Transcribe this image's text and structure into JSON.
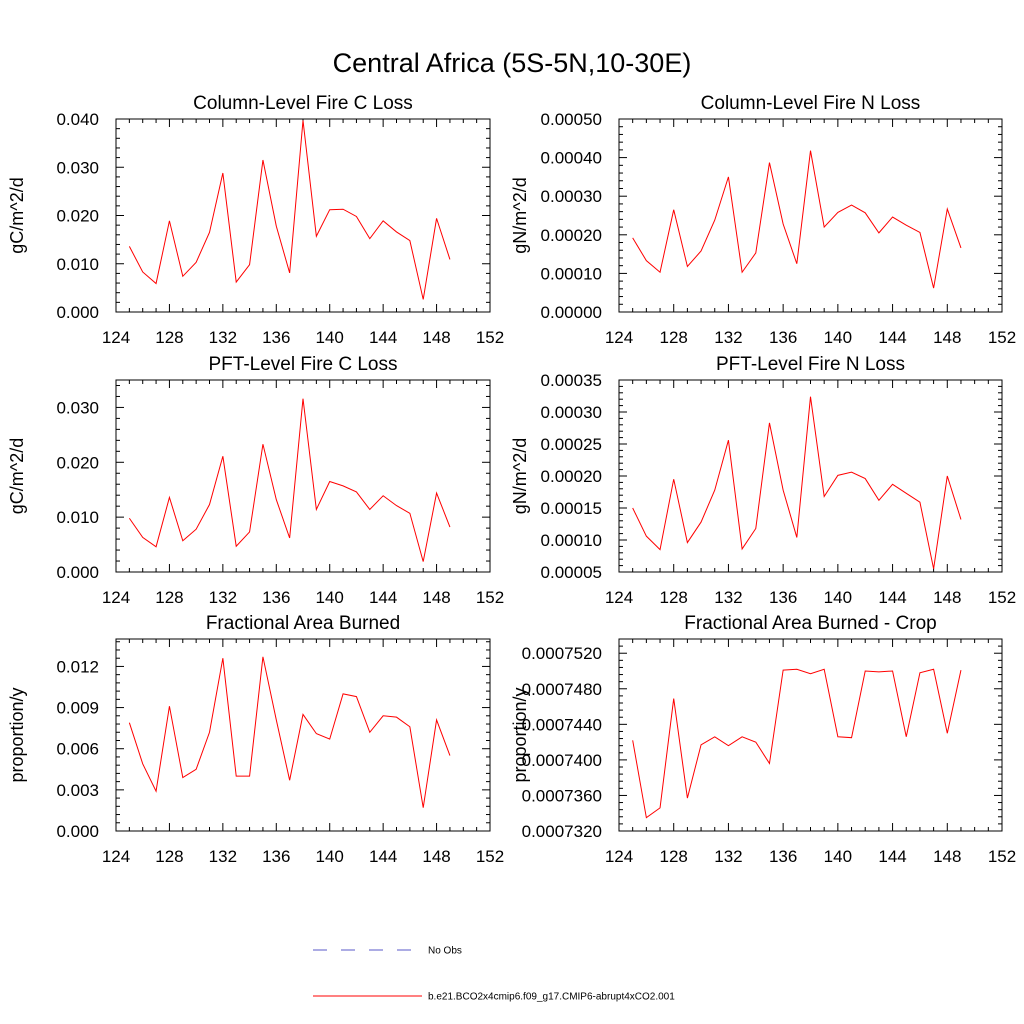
{
  "figure": {
    "title": "Central Africa (5S-5N,10-30E)"
  },
  "legend": {
    "entries": [
      {
        "label": "No Obs",
        "color": "#5a5ac8",
        "style": "dashed"
      },
      {
        "label": "b.e21.BCO2x4cmip6.f09_g17.CMIP6-abrupt4xCO2.001",
        "color": "#ff0000",
        "style": "solid"
      }
    ]
  },
  "chart_data": [
    {
      "type": "line",
      "title": "Column-Level Fire C Loss",
      "xlabel": "",
      "ylabel": "gC/m^2/d",
      "xlim": [
        124,
        152
      ],
      "ylim": [
        0,
        0.04
      ],
      "xticks": [
        124,
        128,
        132,
        136,
        140,
        144,
        148,
        152
      ],
      "xticklabels": [
        "124",
        "128",
        "132",
        "136",
        "140",
        "144",
        "148",
        "152"
      ],
      "yticks": [
        0,
        0.01,
        0.02,
        0.03,
        0.04
      ],
      "yticklabels": [
        "0.000",
        "0.010",
        "0.020",
        "0.030",
        "0.040"
      ],
      "grid": false,
      "series": [
        {
          "name": "b.e21.BCO2x4cmip6.f09_g17.CMIP6-abrupt4xCO2.001",
          "color": "#ff0000",
          "x": [
            125,
            126,
            127,
            128,
            129,
            130,
            131,
            132,
            133,
            134,
            135,
            136,
            137,
            138,
            139,
            140,
            141,
            142,
            143,
            144,
            145,
            146,
            147,
            148,
            149
          ],
          "y": [
            0.0136,
            0.0083,
            0.0059,
            0.0189,
            0.0074,
            0.0103,
            0.0165,
            0.0288,
            0.0062,
            0.0098,
            0.0315,
            0.0178,
            0.0081,
            0.0397,
            0.0157,
            0.0212,
            0.0213,
            0.0198,
            0.0152,
            0.0189,
            0.0166,
            0.0148,
            0.0026,
            0.0194,
            0.0109
          ]
        }
      ]
    },
    {
      "type": "line",
      "title": "Column-Level Fire N Loss",
      "xlabel": "",
      "ylabel": "gN/m^2/d",
      "xlim": [
        124,
        152
      ],
      "ylim": [
        0,
        0.0005
      ],
      "xticks": [
        124,
        128,
        132,
        136,
        140,
        144,
        148,
        152
      ],
      "xticklabels": [
        "124",
        "128",
        "132",
        "136",
        "140",
        "144",
        "148",
        "152"
      ],
      "yticks": [
        0,
        0.0001,
        0.0002,
        0.0003,
        0.0004,
        0.0005
      ],
      "yticklabels": [
        "0.00000",
        "0.00010",
        "0.00020",
        "0.00030",
        "0.00040",
        "0.00050"
      ],
      "grid": false,
      "series": [
        {
          "name": "b.e21.BCO2x4cmip6.f09_g17.CMIP6-abrupt4xCO2.001",
          "color": "#ff0000",
          "x": [
            125,
            126,
            127,
            128,
            129,
            130,
            131,
            132,
            133,
            134,
            135,
            136,
            137,
            138,
            139,
            140,
            141,
            142,
            143,
            144,
            145,
            146,
            147,
            148,
            149
          ],
          "y": [
            0.000192,
            0.000133,
            0.000103,
            0.000265,
            0.000118,
            0.000158,
            0.000238,
            0.00035,
            0.000103,
            0.000153,
            0.000387,
            0.000228,
            0.000125,
            0.000418,
            0.00022,
            0.000258,
            0.000277,
            0.000257,
            0.000205,
            0.000246,
            0.000225,
            0.000206,
            6.2e-05,
            0.000267,
            0.000166
          ]
        }
      ]
    },
    {
      "type": "line",
      "title": "PFT-Level Fire C Loss",
      "xlabel": "",
      "ylabel": "gC/m^2/d",
      "xlim": [
        124,
        152
      ],
      "ylim": [
        0,
        0.035
      ],
      "xticks": [
        124,
        128,
        132,
        136,
        140,
        144,
        148,
        152
      ],
      "xticklabels": [
        "124",
        "128",
        "132",
        "136",
        "140",
        "144",
        "148",
        "152"
      ],
      "yticks": [
        0,
        0.01,
        0.02,
        0.03
      ],
      "yticklabels": [
        "0.000",
        "0.010",
        "0.020",
        "0.030"
      ],
      "grid": false,
      "series": [
        {
          "name": "b.e21.BCO2x4cmip6.f09_g17.CMIP6-abrupt4xCO2.001",
          "color": "#ff0000",
          "x": [
            125,
            126,
            127,
            128,
            129,
            130,
            131,
            132,
            133,
            134,
            135,
            136,
            137,
            138,
            139,
            140,
            141,
            142,
            143,
            144,
            145,
            146,
            147,
            148,
            149
          ],
          "y": [
            0.0098,
            0.0063,
            0.0046,
            0.0136,
            0.0057,
            0.0078,
            0.0123,
            0.0211,
            0.0047,
            0.0073,
            0.0233,
            0.0132,
            0.0062,
            0.0316,
            0.0114,
            0.0165,
            0.0157,
            0.0146,
            0.0114,
            0.0139,
            0.0121,
            0.0107,
            0.0019,
            0.0144,
            0.0082
          ]
        }
      ]
    },
    {
      "type": "line",
      "title": "PFT-Level Fire N Loss",
      "xlabel": "",
      "ylabel": "gN/m^2/d",
      "xlim": [
        124,
        152
      ],
      "ylim": [
        5e-05,
        0.00035
      ],
      "xticks": [
        124,
        128,
        132,
        136,
        140,
        144,
        148,
        152
      ],
      "xticklabels": [
        "124",
        "128",
        "132",
        "136",
        "140",
        "144",
        "148",
        "152"
      ],
      "yticks": [
        5e-05,
        0.0001,
        0.00015,
        0.0002,
        0.00025,
        0.0003,
        0.00035
      ],
      "yticklabels": [
        "0.00005",
        "0.00010",
        "0.00015",
        "0.00020",
        "0.00025",
        "0.00030",
        "0.00035"
      ],
      "grid": false,
      "series": [
        {
          "name": "b.e21.BCO2x4cmip6.f09_g17.CMIP6-abrupt4xCO2.001",
          "color": "#ff0000",
          "x": [
            125,
            126,
            127,
            128,
            129,
            130,
            131,
            132,
            133,
            134,
            135,
            136,
            137,
            138,
            139,
            140,
            141,
            142,
            143,
            144,
            145,
            146,
            147,
            148,
            149
          ],
          "y": [
            0.00015,
            0.000106,
            8.5e-05,
            0.000195,
            9.6e-05,
            0.000128,
            0.000178,
            0.000256,
            8.6e-05,
            0.000118,
            0.000283,
            0.000178,
            0.000104,
            0.000324,
            0.000168,
            0.000201,
            0.000206,
            0.000196,
            0.000162,
            0.000187,
            0.000173,
            0.000159,
            5.5e-05,
            0.0002,
            0.000132
          ]
        }
      ]
    },
    {
      "type": "line",
      "title": "Fractional Area Burned",
      "xlabel": "",
      "ylabel": "proportion/y",
      "xlim": [
        124,
        152
      ],
      "ylim": [
        0,
        0.014
      ],
      "xticks": [
        124,
        128,
        132,
        136,
        140,
        144,
        148,
        152
      ],
      "xticklabels": [
        "124",
        "128",
        "132",
        "136",
        "140",
        "144",
        "148",
        "152"
      ],
      "yticks": [
        0,
        0.003,
        0.006,
        0.009,
        0.012
      ],
      "yticklabels": [
        "0.000",
        "0.003",
        "0.006",
        "0.009",
        "0.012"
      ],
      "grid": false,
      "series": [
        {
          "name": "b.e21.BCO2x4cmip6.f09_g17.CMIP6-abrupt4xCO2.001",
          "color": "#ff0000",
          "x": [
            125,
            126,
            127,
            128,
            129,
            130,
            131,
            132,
            133,
            134,
            135,
            136,
            137,
            138,
            139,
            140,
            141,
            142,
            143,
            144,
            145,
            146,
            147,
            148,
            149
          ],
          "y": [
            0.0079,
            0.0049,
            0.0029,
            0.0091,
            0.0039,
            0.0045,
            0.0072,
            0.0126,
            0.004,
            0.004,
            0.0127,
            0.0081,
            0.0037,
            0.0085,
            0.0071,
            0.0067,
            0.01,
            0.0098,
            0.0072,
            0.0084,
            0.0083,
            0.0076,
            0.0017,
            0.0081,
            0.0055
          ]
        }
      ]
    },
    {
      "type": "line",
      "title": "Fractional Area Burned - Crop",
      "xlabel": "",
      "ylabel": "proportion/y",
      "xlim": [
        124,
        152
      ],
      "ylim": [
        0.000732,
        0.0007536
      ],
      "xticks": [
        124,
        128,
        132,
        136,
        140,
        144,
        148,
        152
      ],
      "xticklabels": [
        "124",
        "128",
        "132",
        "136",
        "140",
        "144",
        "148",
        "152"
      ],
      "yticks": [
        0.000732,
        0.000736,
        0.00074,
        0.000744,
        0.000748,
        0.000752
      ],
      "yticklabels": [
        "0.0007320",
        "0.0007360",
        "0.0007400",
        "0.0007440",
        "0.0007480",
        "0.0007520"
      ],
      "grid": false,
      "series": [
        {
          "name": "b.e21.BCO2x4cmip6.f09_g17.CMIP6-abrupt4xCO2.001",
          "color": "#ff0000",
          "x": [
            125,
            126,
            127,
            128,
            129,
            130,
            131,
            132,
            133,
            134,
            135,
            136,
            137,
            138,
            139,
            140,
            141,
            142,
            143,
            144,
            145,
            146,
            147,
            148,
            149
          ],
          "y": [
            0.0007422,
            0.0007335,
            0.0007346,
            0.0007469,
            0.0007357,
            0.0007417,
            0.0007426,
            0.0007416,
            0.0007426,
            0.000742,
            0.0007396,
            0.0007501,
            0.0007502,
            0.0007497,
            0.0007502,
            0.0007426,
            0.0007425,
            0.00075,
            0.0007499,
            0.00075,
            0.0007426,
            0.0007498,
            0.0007502,
            0.000743,
            0.0007501
          ]
        }
      ]
    }
  ]
}
